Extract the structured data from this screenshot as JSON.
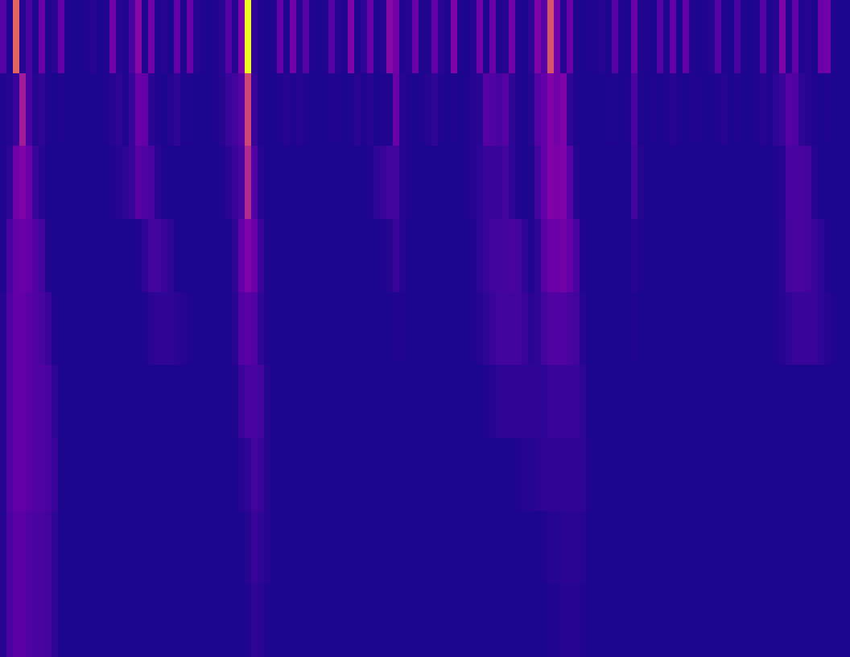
{
  "chart_data": {
    "type": "heatmap",
    "tick_labels": false,
    "color_range": [
      0,
      100
    ],
    "cells": [
      [
        15,
        3,
        60,
        4,
        12,
        3,
        20,
        3,
        5,
        18,
        3,
        2,
        2,
        3,
        4,
        2,
        3,
        22,
        4,
        3,
        12,
        28,
        3,
        22,
        3,
        4,
        2,
        18,
        3,
        20,
        4,
        3,
        2,
        3,
        5,
        15,
        4,
        25,
        100,
        6,
        3,
        2,
        3,
        18,
        3,
        22,
        4,
        15,
        3,
        2,
        3,
        15,
        4,
        3,
        25,
        3,
        6,
        20,
        3,
        4,
        28,
        22,
        3,
        4,
        20,
        3,
        3,
        18,
        5,
        3,
        25,
        3,
        2,
        4,
        22,
        3,
        20,
        3,
        4,
        22,
        3,
        2,
        6,
        25,
        15,
        55,
        22,
        4,
        20,
        3,
        2,
        3,
        3,
        4,
        2,
        15,
        3,
        2,
        20,
        3,
        3,
        2,
        15,
        3,
        18,
        2,
        18,
        3,
        2,
        3,
        4,
        15,
        3,
        2,
        12,
        3,
        2,
        3,
        15,
        3,
        4,
        25,
        3,
        18,
        3,
        4,
        2,
        20,
        22,
        3,
        2,
        2
      ],
      [
        3,
        4,
        8,
        35,
        12,
        4,
        6,
        3,
        2,
        3,
        2,
        2,
        2,
        2,
        2,
        2,
        3,
        4,
        6,
        3,
        8,
        20,
        18,
        5,
        3,
        2,
        4,
        6,
        3,
        3,
        2,
        2,
        2,
        3,
        4,
        8,
        10,
        15,
        50,
        8,
        3,
        2,
        2,
        3,
        4,
        3,
        4,
        3,
        2,
        2,
        2,
        3,
        3,
        2,
        3,
        5,
        3,
        4,
        2,
        3,
        3,
        20,
        4,
        3,
        2,
        3,
        4,
        6,
        3,
        2,
        3,
        2,
        3,
        4,
        5,
        15,
        14,
        12,
        15,
        6,
        3,
        2,
        4,
        15,
        18,
        25,
        22,
        25,
        6,
        3,
        2,
        2,
        2,
        2,
        3,
        3,
        2,
        3,
        12,
        3,
        2,
        3,
        2,
        3,
        4,
        3,
        2,
        3,
        3,
        2,
        2,
        3,
        4,
        2,
        3,
        2,
        2,
        3,
        4,
        3,
        6,
        8,
        15,
        14,
        6,
        4,
        3,
        2,
        3,
        2,
        2,
        2
      ],
      [
        3,
        6,
        22,
        25,
        20,
        8,
        4,
        2,
        2,
        2,
        2,
        2,
        2,
        2,
        2,
        2,
        2,
        3,
        4,
        6,
        8,
        15,
        14,
        12,
        5,
        3,
        2,
        2,
        2,
        2,
        2,
        2,
        2,
        2,
        3,
        5,
        8,
        12,
        40,
        14,
        4,
        2,
        2,
        2,
        2,
        2,
        2,
        2,
        2,
        2,
        2,
        2,
        2,
        2,
        2,
        2,
        2,
        3,
        6,
        8,
        10,
        10,
        4,
        3,
        2,
        2,
        2,
        2,
        2,
        2,
        2,
        2,
        3,
        4,
        6,
        8,
        8,
        8,
        10,
        6,
        3,
        2,
        3,
        10,
        18,
        25,
        24,
        25,
        15,
        4,
        2,
        2,
        2,
        2,
        2,
        2,
        2,
        2,
        10,
        4,
        2,
        2,
        2,
        2,
        2,
        2,
        2,
        2,
        2,
        2,
        2,
        2,
        2,
        2,
        2,
        2,
        2,
        2,
        2,
        2,
        3,
        4,
        12,
        12,
        12,
        10,
        4,
        2,
        2,
        2,
        2,
        2
      ],
      [
        3,
        12,
        18,
        20,
        18,
        14,
        10,
        3,
        2,
        2,
        2,
        2,
        2,
        2,
        2,
        2,
        2,
        2,
        2,
        2,
        2,
        3,
        6,
        10,
        10,
        8,
        6,
        2,
        2,
        2,
        2,
        2,
        2,
        2,
        2,
        2,
        6,
        18,
        25,
        20,
        8,
        3,
        2,
        2,
        2,
        2,
        2,
        2,
        2,
        2,
        2,
        2,
        2,
        2,
        2,
        2,
        2,
        2,
        2,
        3,
        4,
        8,
        4,
        2,
        2,
        2,
        2,
        2,
        2,
        2,
        2,
        2,
        2,
        3,
        6,
        8,
        10,
        10,
        10,
        12,
        10,
        6,
        3,
        6,
        15,
        20,
        20,
        22,
        18,
        12,
        3,
        2,
        2,
        2,
        2,
        2,
        2,
        2,
        4,
        3,
        2,
        2,
        2,
        2,
        2,
        2,
        2,
        2,
        2,
        2,
        2,
        2,
        2,
        2,
        2,
        2,
        2,
        2,
        2,
        2,
        3,
        5,
        10,
        12,
        12,
        10,
        8,
        6,
        3,
        2,
        2,
        2
      ],
      [
        4,
        14,
        18,
        18,
        16,
        14,
        12,
        8,
        3,
        2,
        2,
        2,
        2,
        2,
        2,
        2,
        2,
        2,
        2,
        2,
        2,
        2,
        3,
        5,
        6,
        6,
        6,
        5,
        4,
        3,
        2,
        2,
        2,
        2,
        2,
        2,
        5,
        14,
        16,
        14,
        6,
        3,
        2,
        2,
        2,
        2,
        2,
        2,
        2,
        2,
        2,
        2,
        2,
        2,
        2,
        2,
        2,
        2,
        2,
        2,
        2,
        3,
        3,
        2,
        2,
        2,
        2,
        2,
        2,
        2,
        2,
        2,
        2,
        3,
        4,
        6,
        8,
        10,
        10,
        10,
        10,
        8,
        5,
        6,
        10,
        14,
        14,
        14,
        12,
        10,
        4,
        2,
        2,
        2,
        2,
        2,
        2,
        2,
        3,
        2,
        2,
        2,
        2,
        2,
        2,
        2,
        2,
        2,
        2,
        2,
        2,
        2,
        2,
        2,
        2,
        2,
        2,
        2,
        2,
        2,
        3,
        4,
        6,
        8,
        8,
        8,
        8,
        6,
        4,
        3,
        2,
        2
      ],
      [
        4,
        14,
        18,
        18,
        16,
        14,
        14,
        12,
        6,
        2,
        2,
        2,
        2,
        2,
        2,
        2,
        2,
        2,
        2,
        2,
        2,
        2,
        2,
        2,
        2,
        2,
        2,
        2,
        2,
        2,
        2,
        2,
        2,
        2,
        2,
        2,
        3,
        8,
        12,
        12,
        10,
        4,
        2,
        2,
        2,
        2,
        2,
        2,
        2,
        2,
        2,
        2,
        2,
        2,
        2,
        2,
        2,
        2,
        2,
        2,
        2,
        2,
        2,
        2,
        2,
        2,
        2,
        2,
        2,
        2,
        2,
        2,
        2,
        2,
        2,
        3,
        4,
        6,
        6,
        6,
        6,
        6,
        6,
        6,
        6,
        8,
        8,
        8,
        8,
        8,
        6,
        2,
        2,
        2,
        2,
        2,
        2,
        2,
        2,
        2,
        2,
        2,
        2,
        2,
        2,
        2,
        2,
        2,
        2,
        2,
        2,
        2,
        2,
        2,
        2,
        2,
        2,
        2,
        2,
        2,
        2,
        2,
        2,
        2,
        2,
        2,
        2,
        2,
        2,
        2,
        2,
        2
      ],
      [
        4,
        14,
        18,
        18,
        16,
        14,
        14,
        12,
        8,
        2,
        2,
        2,
        2,
        2,
        2,
        2,
        2,
        2,
        2,
        2,
        2,
        2,
        2,
        2,
        2,
        2,
        2,
        2,
        2,
        2,
        2,
        2,
        2,
        2,
        2,
        2,
        2,
        4,
        6,
        10,
        8,
        4,
        2,
        2,
        2,
        2,
        2,
        2,
        2,
        2,
        2,
        2,
        2,
        2,
        2,
        2,
        2,
        2,
        2,
        2,
        2,
        2,
        2,
        2,
        2,
        2,
        2,
        2,
        2,
        2,
        2,
        2,
        2,
        2,
        2,
        2,
        2,
        2,
        2,
        2,
        3,
        4,
        4,
        5,
        6,
        6,
        6,
        6,
        6,
        6,
        6,
        3,
        2,
        2,
        2,
        2,
        2,
        2,
        2,
        2,
        2,
        2,
        2,
        2,
        2,
        2,
        2,
        2,
        2,
        2,
        2,
        2,
        2,
        2,
        2,
        2,
        2,
        2,
        2,
        2,
        2,
        2,
        2,
        2,
        2,
        2,
        2,
        2,
        2,
        2,
        2,
        2
      ],
      [
        4,
        12,
        16,
        16,
        14,
        12,
        12,
        10,
        6,
        2,
        2,
        2,
        2,
        2,
        2,
        2,
        2,
        2,
        2,
        2,
        2,
        2,
        2,
        2,
        2,
        2,
        2,
        2,
        2,
        2,
        2,
        2,
        2,
        2,
        2,
        2,
        2,
        2,
        4,
        8,
        6,
        4,
        2,
        2,
        2,
        2,
        2,
        2,
        2,
        2,
        2,
        2,
        2,
        2,
        2,
        2,
        2,
        2,
        2,
        2,
        2,
        2,
        2,
        2,
        2,
        2,
        2,
        2,
        2,
        2,
        2,
        2,
        2,
        2,
        2,
        2,
        2,
        2,
        2,
        2,
        2,
        2,
        2,
        2,
        3,
        4,
        4,
        5,
        5,
        5,
        4,
        2,
        2,
        2,
        2,
        2,
        2,
        2,
        2,
        2,
        2,
        2,
        2,
        2,
        2,
        2,
        2,
        2,
        2,
        2,
        2,
        2,
        2,
        2,
        2,
        2,
        2,
        2,
        2,
        2,
        2,
        2,
        2,
        2,
        2,
        2,
        2,
        2,
        2,
        2,
        2,
        2
      ],
      [
        4,
        12,
        16,
        16,
        14,
        12,
        12,
        10,
        6,
        2,
        2,
        2,
        2,
        2,
        2,
        2,
        2,
        2,
        2,
        2,
        2,
        2,
        2,
        2,
        2,
        2,
        2,
        2,
        2,
        2,
        2,
        2,
        2,
        2,
        2,
        2,
        2,
        2,
        3,
        6,
        5,
        3,
        2,
        2,
        2,
        2,
        2,
        2,
        2,
        2,
        2,
        2,
        2,
        2,
        2,
        2,
        2,
        2,
        2,
        2,
        2,
        2,
        2,
        2,
        2,
        2,
        2,
        2,
        2,
        2,
        2,
        2,
        2,
        2,
        2,
        2,
        2,
        2,
        2,
        2,
        2,
        2,
        2,
        2,
        2,
        3,
        3,
        4,
        4,
        4,
        3,
        2,
        2,
        2,
        2,
        2,
        2,
        2,
        2,
        2,
        2,
        2,
        2,
        2,
        2,
        2,
        2,
        2,
        2,
        2,
        2,
        2,
        2,
        2,
        2,
        2,
        2,
        2,
        2,
        2,
        2,
        2,
        2,
        2,
        2,
        2,
        2,
        2,
        2,
        2,
        2,
        2
      ]
    ]
  }
}
